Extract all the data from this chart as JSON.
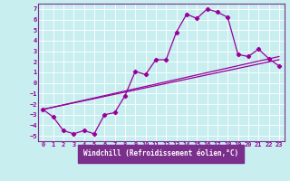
{
  "xlabel": "Windchill (Refroidissement éolien,°C)",
  "background_color": "#c8eef0",
  "bottom_bar_color": "#7b2f8c",
  "grid_color": "#aadddd",
  "line_color": "#990099",
  "border_color": "#7b2f8c",
  "xlim": [
    -0.5,
    23.5
  ],
  "ylim": [
    -5.5,
    7.5
  ],
  "xticks": [
    0,
    1,
    2,
    3,
    4,
    5,
    6,
    7,
    8,
    9,
    10,
    11,
    12,
    13,
    14,
    15,
    16,
    17,
    18,
    19,
    20,
    21,
    22,
    23
  ],
  "yticks": [
    -5,
    -4,
    -3,
    -2,
    -1,
    0,
    1,
    2,
    3,
    4,
    5,
    6,
    7
  ],
  "series1_x": [
    0,
    1,
    2,
    3,
    4,
    5,
    6,
    7,
    8,
    9,
    10,
    11,
    12,
    13,
    14,
    15,
    16,
    17,
    18,
    19,
    20,
    21,
    22,
    23
  ],
  "series1_y": [
    -2.5,
    -3.2,
    -4.5,
    -4.8,
    -4.5,
    -4.8,
    -3.0,
    -2.8,
    -1.2,
    1.1,
    0.8,
    2.2,
    2.2,
    4.8,
    6.5,
    6.1,
    7.0,
    6.7,
    6.2,
    2.7,
    2.5,
    3.2,
    2.3,
    1.6
  ],
  "series2_x": [
    0,
    23
  ],
  "series2_y": [
    -2.5,
    2.2
  ],
  "series3_x": [
    0,
    23
  ],
  "series3_y": [
    -2.5,
    2.5
  ],
  "tick_fontsize": 5.0,
  "label_fontsize": 5.5
}
